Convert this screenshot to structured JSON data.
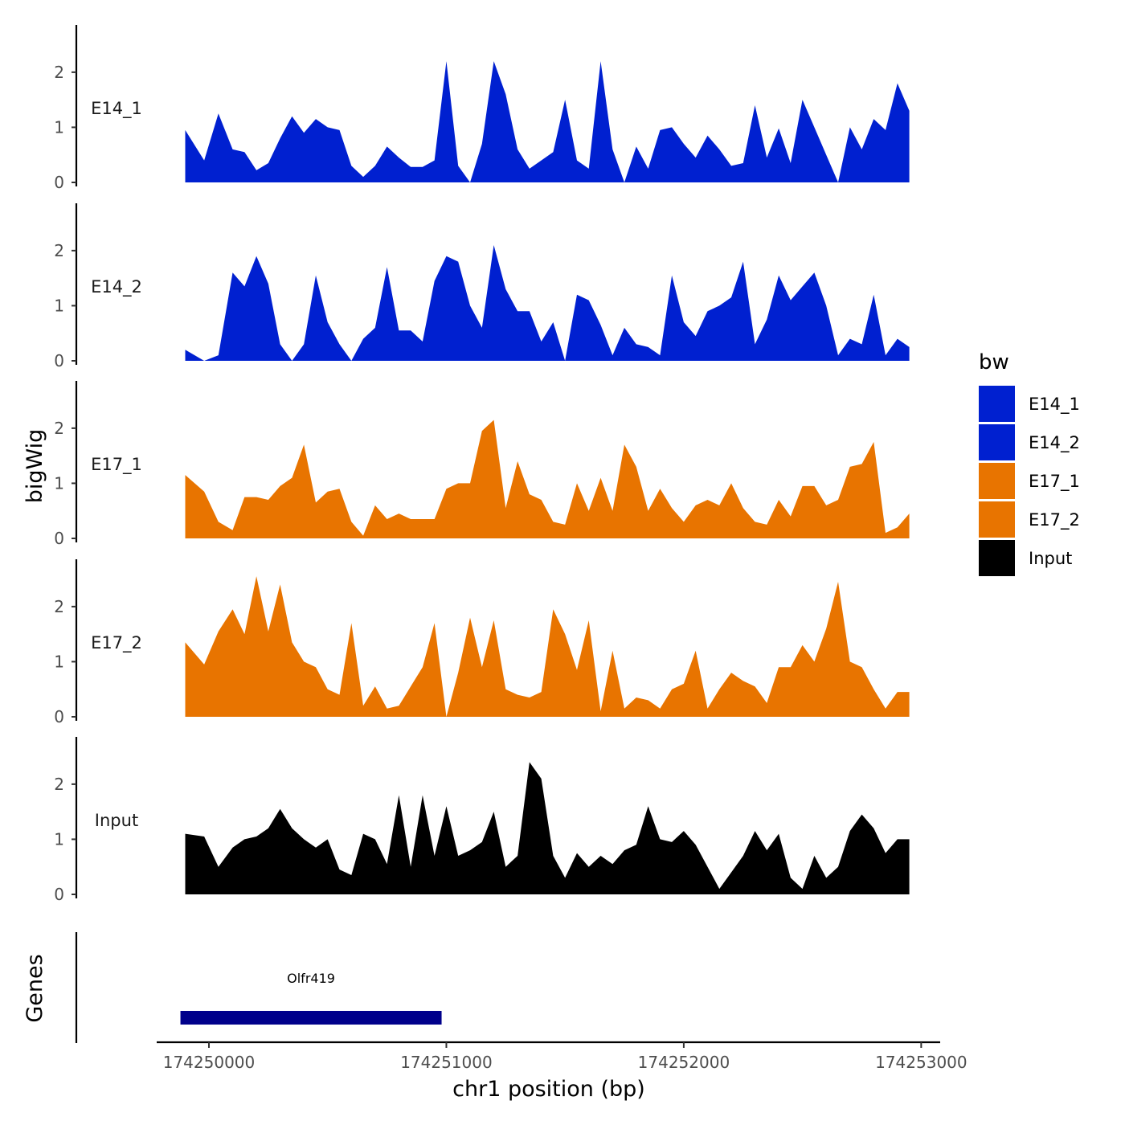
{
  "chart_data": {
    "type": "area",
    "xlabel": "chr1 position (bp)",
    "ylabel": "bigWig",
    "genes_label": "Genes",
    "xlim": [
      174249780,
      174253080
    ],
    "x_ticks": [
      174250000,
      174251000,
      174252000,
      174253000
    ],
    "x_tick_labels": [
      "174250000",
      "174251000",
      "174252000",
      "174253000"
    ],
    "ylim": [
      0,
      2.8
    ],
    "y_ticks": [
      0,
      1,
      2
    ],
    "y_tick_labels": [
      "0",
      "1",
      "2"
    ],
    "legend": {
      "title": "bw",
      "entries": [
        {
          "name": "E14_1",
          "color": "#0020D0"
        },
        {
          "name": "E14_2",
          "color": "#0020D0"
        },
        {
          "name": "E17_1",
          "color": "#E87400"
        },
        {
          "name": "E17_2",
          "color": "#E87400"
        },
        {
          "name": "Input",
          "color": "#000000"
        }
      ]
    },
    "x": [
      174249900,
      174249980,
      174250040,
      174250100,
      174250150,
      174250200,
      174250250,
      174250300,
      174250350,
      174250400,
      174250450,
      174250500,
      174250550,
      174250600,
      174250650,
      174250700,
      174250750,
      174250800,
      174250850,
      174250900,
      174250950,
      174251000,
      174251050,
      174251100,
      174251150,
      174251200,
      174251250,
      174251300,
      174251350,
      174251400,
      174251450,
      174251500,
      174251550,
      174251600,
      174251650,
      174251700,
      174251750,
      174251800,
      174251850,
      174251900,
      174251950,
      174252000,
      174252050,
      174252100,
      174252150,
      174252200,
      174252250,
      174252300,
      174252350,
      174252400,
      174252450,
      174252500,
      174252550,
      174252600,
      174252650,
      174252700,
      174252750,
      174252800,
      174252850,
      174252900,
      174252950
    ],
    "series": [
      {
        "name": "E14_1",
        "color": "#0020D0",
        "values": [
          0.95,
          0.4,
          1.25,
          0.6,
          0.55,
          0.22,
          0.35,
          0.8,
          1.2,
          0.9,
          1.15,
          1.0,
          0.95,
          0.3,
          0.1,
          0.3,
          0.65,
          0.45,
          0.28,
          0.28,
          0.4,
          2.2,
          0.3,
          0.0,
          0.7,
          2.2,
          1.6,
          0.6,
          0.25,
          0.4,
          0.55,
          1.5,
          0.4,
          0.25,
          2.2,
          0.6,
          0.0,
          0.65,
          0.25,
          0.95,
          1.0,
          0.7,
          0.45,
          0.85,
          0.6,
          0.3,
          0.35,
          1.4,
          0.45,
          0.98,
          0.35,
          1.5,
          1.0,
          0.5,
          0.0,
          1.0,
          0.6,
          1.15,
          0.95,
          1.8,
          1.3
        ]
      },
      {
        "name": "E14_2",
        "color": "#0020D0",
        "values": [
          0.2,
          0.0,
          0.1,
          1.6,
          1.35,
          1.9,
          1.4,
          0.3,
          0.0,
          0.3,
          1.55,
          0.7,
          0.3,
          0.0,
          0.4,
          0.6,
          1.7,
          0.55,
          0.55,
          0.35,
          1.45,
          1.9,
          1.8,
          1.0,
          0.6,
          2.1,
          1.3,
          0.9,
          0.9,
          0.35,
          0.7,
          0.0,
          1.2,
          1.1,
          0.65,
          0.1,
          0.6,
          0.3,
          0.25,
          0.1,
          1.55,
          0.7,
          0.45,
          0.9,
          1.0,
          1.15,
          1.8,
          0.3,
          0.75,
          1.55,
          1.1,
          1.35,
          1.6,
          1.0,
          0.1,
          0.4,
          0.3,
          1.2,
          0.1,
          0.4,
          0.25
        ]
      },
      {
        "name": "E17_1",
        "color": "#E87400",
        "values": [
          1.15,
          0.85,
          0.3,
          0.15,
          0.75,
          0.75,
          0.7,
          0.95,
          1.1,
          1.7,
          0.65,
          0.85,
          0.9,
          0.3,
          0.05,
          0.6,
          0.35,
          0.45,
          0.35,
          0.35,
          0.35,
          0.9,
          1.0,
          1.0,
          1.95,
          2.15,
          0.55,
          1.4,
          0.8,
          0.7,
          0.3,
          0.25,
          1.0,
          0.5,
          1.1,
          0.5,
          1.7,
          1.3,
          0.5,
          0.9,
          0.55,
          0.3,
          0.6,
          0.7,
          0.6,
          1.0,
          0.55,
          0.3,
          0.25,
          0.7,
          0.4,
          0.95,
          0.95,
          0.6,
          0.7,
          1.3,
          1.35,
          1.75,
          0.1,
          0.2,
          0.45
        ]
      },
      {
        "name": "E17_2",
        "color": "#E87400",
        "values": [
          1.35,
          0.95,
          1.55,
          1.95,
          1.5,
          2.55,
          1.55,
          2.4,
          1.35,
          1.0,
          0.9,
          0.5,
          0.4,
          1.7,
          0.2,
          0.55,
          0.15,
          0.2,
          0.55,
          0.9,
          1.7,
          0.0,
          0.8,
          1.8,
          0.9,
          1.75,
          0.5,
          0.4,
          0.35,
          0.45,
          1.95,
          1.5,
          0.85,
          1.75,
          0.1,
          1.2,
          0.15,
          0.35,
          0.3,
          0.15,
          0.5,
          0.6,
          1.2,
          0.15,
          0.5,
          0.8,
          0.65,
          0.55,
          0.25,
          0.9,
          0.9,
          1.3,
          1.0,
          1.6,
          2.45,
          1.0,
          0.9,
          0.5,
          0.15,
          0.45,
          0.45
        ]
      },
      {
        "name": "Input",
        "color": "#000000",
        "values": [
          1.1,
          1.05,
          0.5,
          0.85,
          1.0,
          1.05,
          1.2,
          1.55,
          1.2,
          1.0,
          0.85,
          1.0,
          0.45,
          0.35,
          1.1,
          1.0,
          0.55,
          1.8,
          0.5,
          1.8,
          0.7,
          1.6,
          0.7,
          0.8,
          0.95,
          1.5,
          0.5,
          0.7,
          2.4,
          2.1,
          0.7,
          0.3,
          0.75,
          0.5,
          0.7,
          0.55,
          0.8,
          0.9,
          1.6,
          1.0,
          0.95,
          1.15,
          0.9,
          0.5,
          0.1,
          0.4,
          0.7,
          1.15,
          0.8,
          1.1,
          0.3,
          0.1,
          0.7,
          0.3,
          0.5,
          1.15,
          1.45,
          1.2,
          0.75,
          1.0,
          1.0
        ]
      }
    ],
    "gene": {
      "name": "Olfr419",
      "start": 174249880,
      "end": 174250980,
      "color": "#00008B"
    }
  }
}
